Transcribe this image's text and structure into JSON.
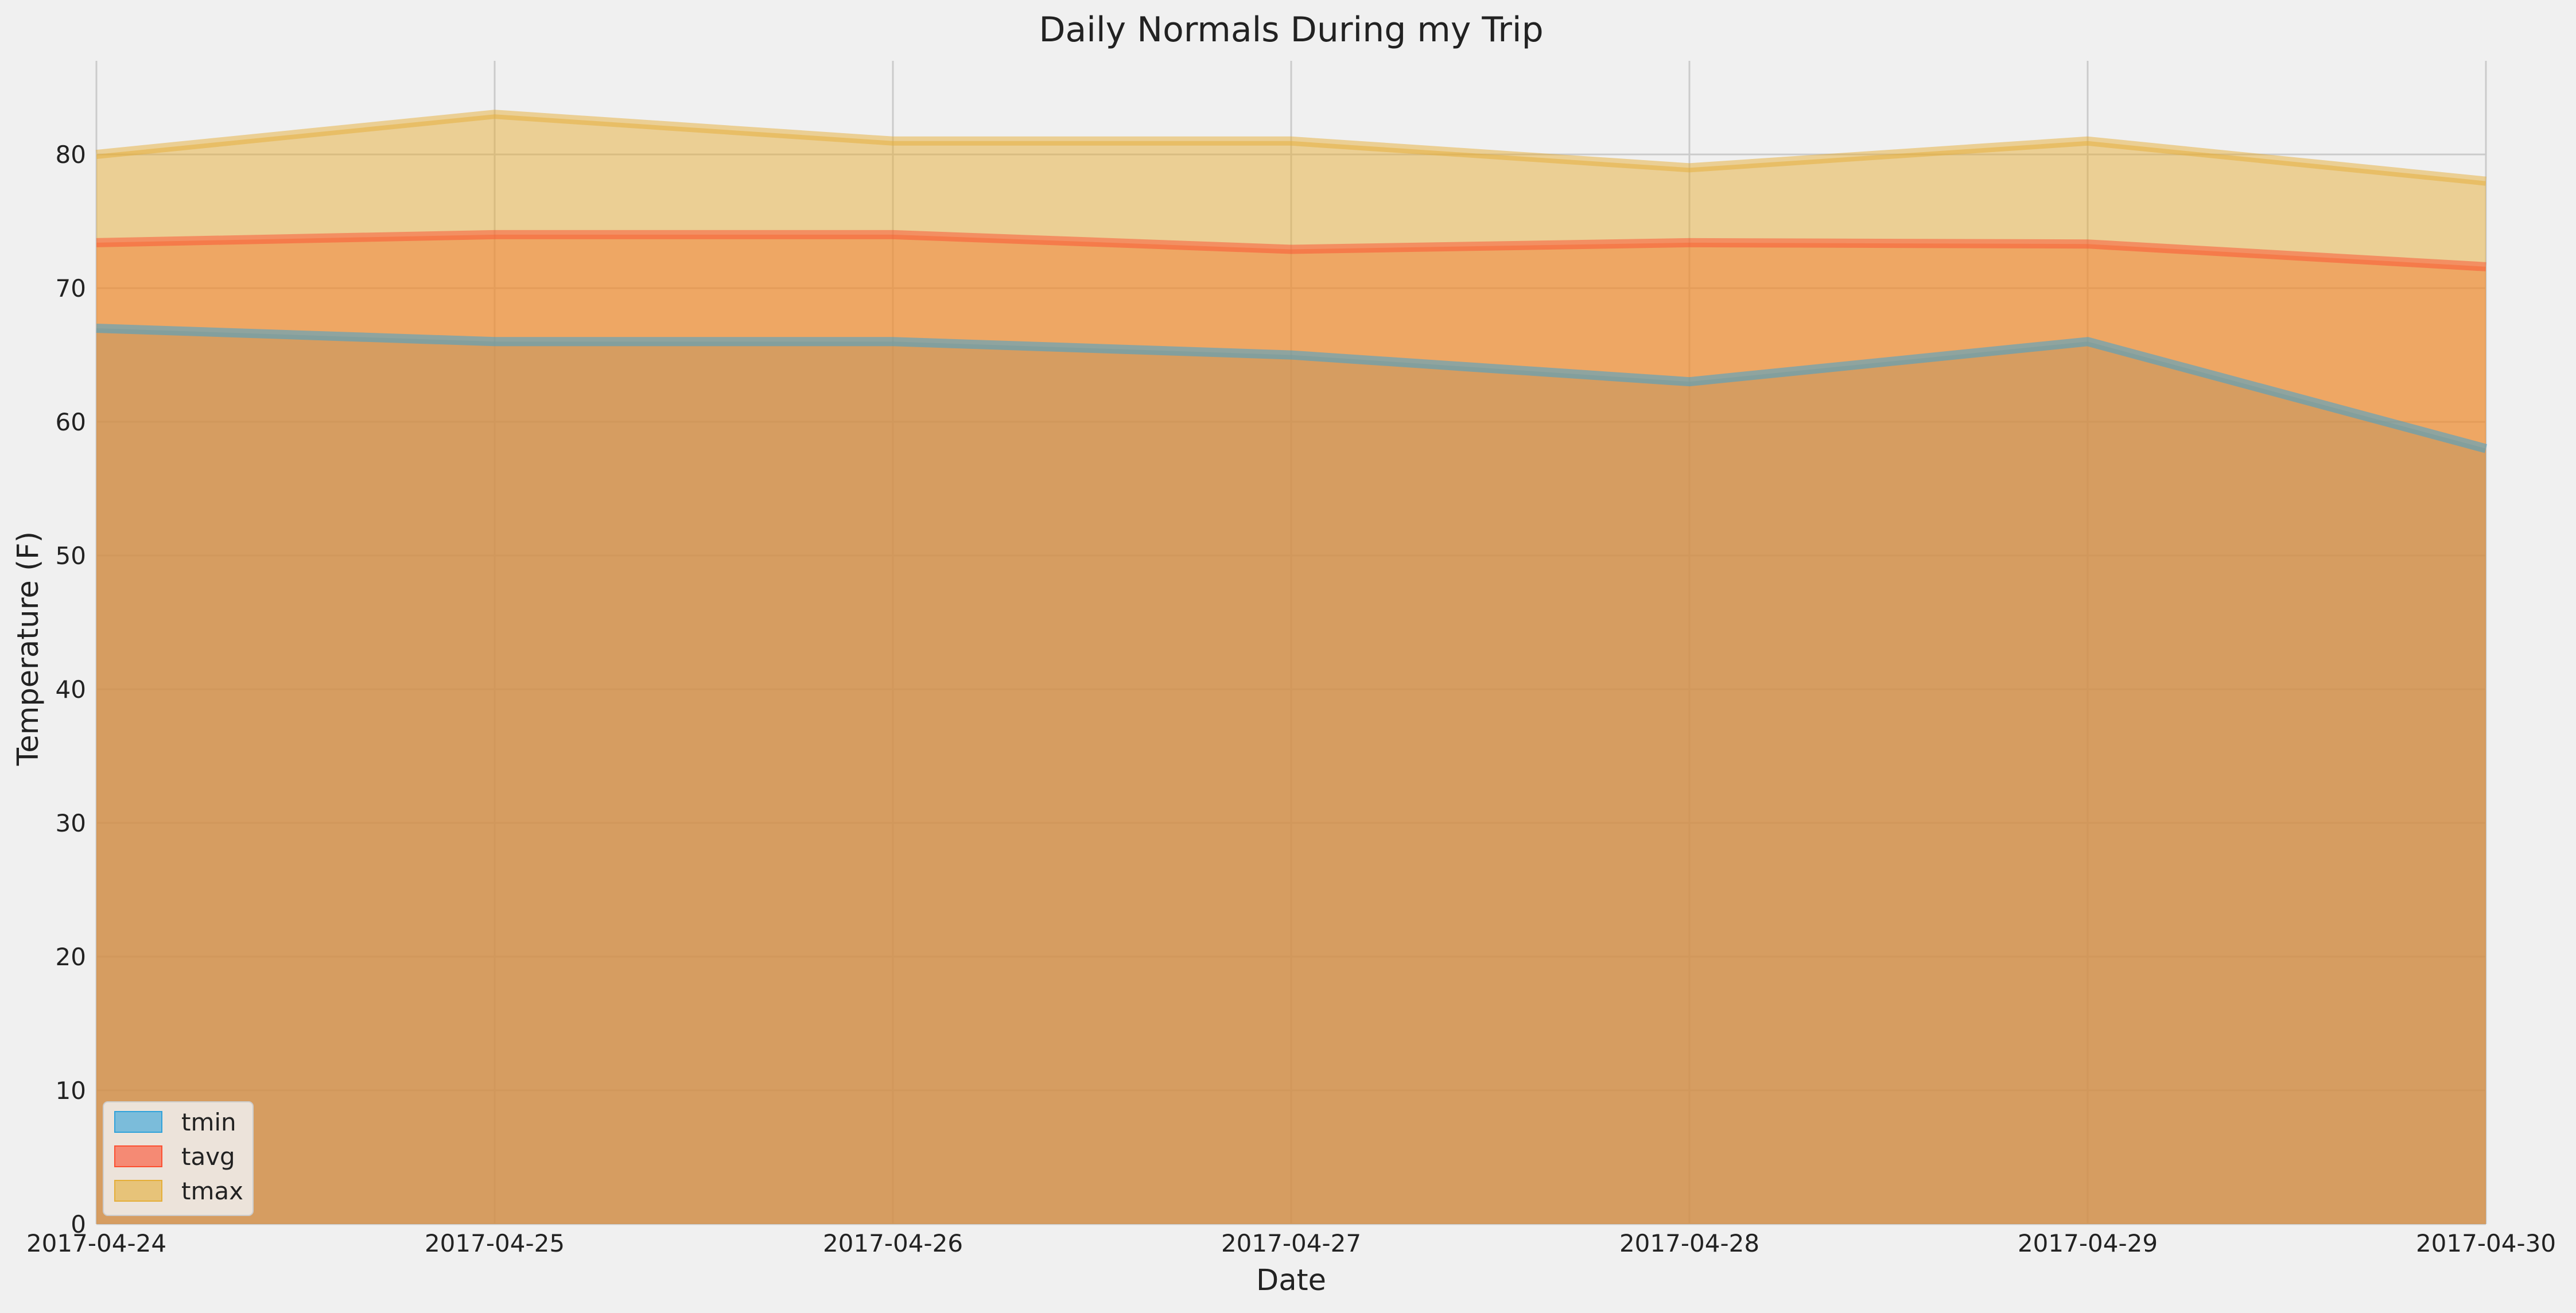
{
  "chart_data": {
    "type": "area",
    "title": "Daily Normals During my Trip",
    "xlabel": "Date",
    "ylabel": "Temperature (F)",
    "x": [
      "2017-04-24",
      "2017-04-25",
      "2017-04-26",
      "2017-04-27",
      "2017-04-28",
      "2017-04-29",
      "2017-04-30"
    ],
    "x_tick_labels": [
      "2017-04-24",
      "2017-04-25",
      "2017-04-26",
      "2017-04-27",
      "2017-04-28",
      "2017-04-29",
      "2017-04-30"
    ],
    "ylim": [
      0,
      87
    ],
    "y_ticks": [
      0,
      10,
      20,
      30,
      40,
      50,
      60,
      70,
      80
    ],
    "stacked": false,
    "grid": true,
    "legend_position": "lower-left",
    "series": [
      {
        "name": "tmin",
        "values": [
          67,
          66,
          66,
          65,
          63,
          66,
          58
        ],
        "color": "#30a2da"
      },
      {
        "name": "tavg",
        "values": [
          73.4,
          74.0,
          74.0,
          72.9,
          73.4,
          73.3,
          71.6
        ],
        "color": "#fc4f30"
      },
      {
        "name": "tmax",
        "values": [
          80,
          83,
          81,
          81,
          79,
          81,
          78
        ],
        "color": "#e5ae38"
      }
    ]
  }
}
